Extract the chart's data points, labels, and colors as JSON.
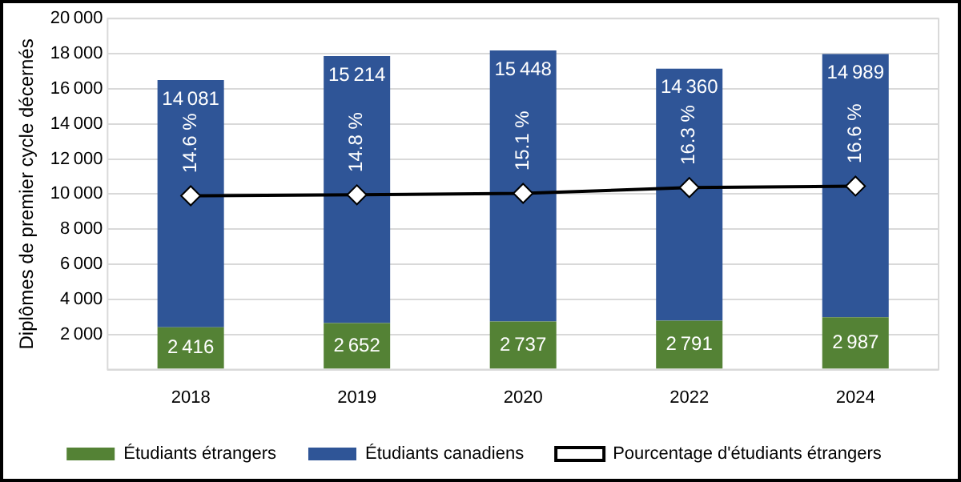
{
  "chart_data": {
    "type": "bar",
    "stacked": true,
    "ylabel": "Diplômes de premier cycle décernés",
    "categories": [
      "2018",
      "2019",
      "2020",
      "2022",
      "2024"
    ],
    "series": [
      {
        "name": "Étudiants étrangers",
        "color": "#548235",
        "values": [
          2416,
          2652,
          2737,
          2791,
          2987
        ]
      },
      {
        "name": "Étudiants canadiens",
        "color": "#2f5597",
        "values": [
          14081,
          15214,
          15448,
          14360,
          14989
        ]
      },
      {
        "name": "Pourcentage d'étudiants étrangers",
        "type": "line",
        "axis": "y2",
        "color": "#000000",
        "values": [
          14.6,
          14.8,
          15.1,
          16.3,
          16.6
        ],
        "value_labels": [
          "14.6 %",
          "14.8 %",
          "15.1 %",
          "16.3 %",
          "16.6 %"
        ]
      }
    ],
    "data_labels": true,
    "marker": "diamond",
    "line_style": "solid",
    "ylim": [
      0,
      20000
    ],
    "yticks": [
      {
        "value": 0,
        "label": null
      },
      2000,
      4000,
      6000,
      8000,
      10000,
      12000,
      14000,
      16000,
      18000,
      20000
    ],
    "y2lim": [
      -21.4,
      51.3
    ],
    "grid": "y",
    "legend": "bottom"
  }
}
